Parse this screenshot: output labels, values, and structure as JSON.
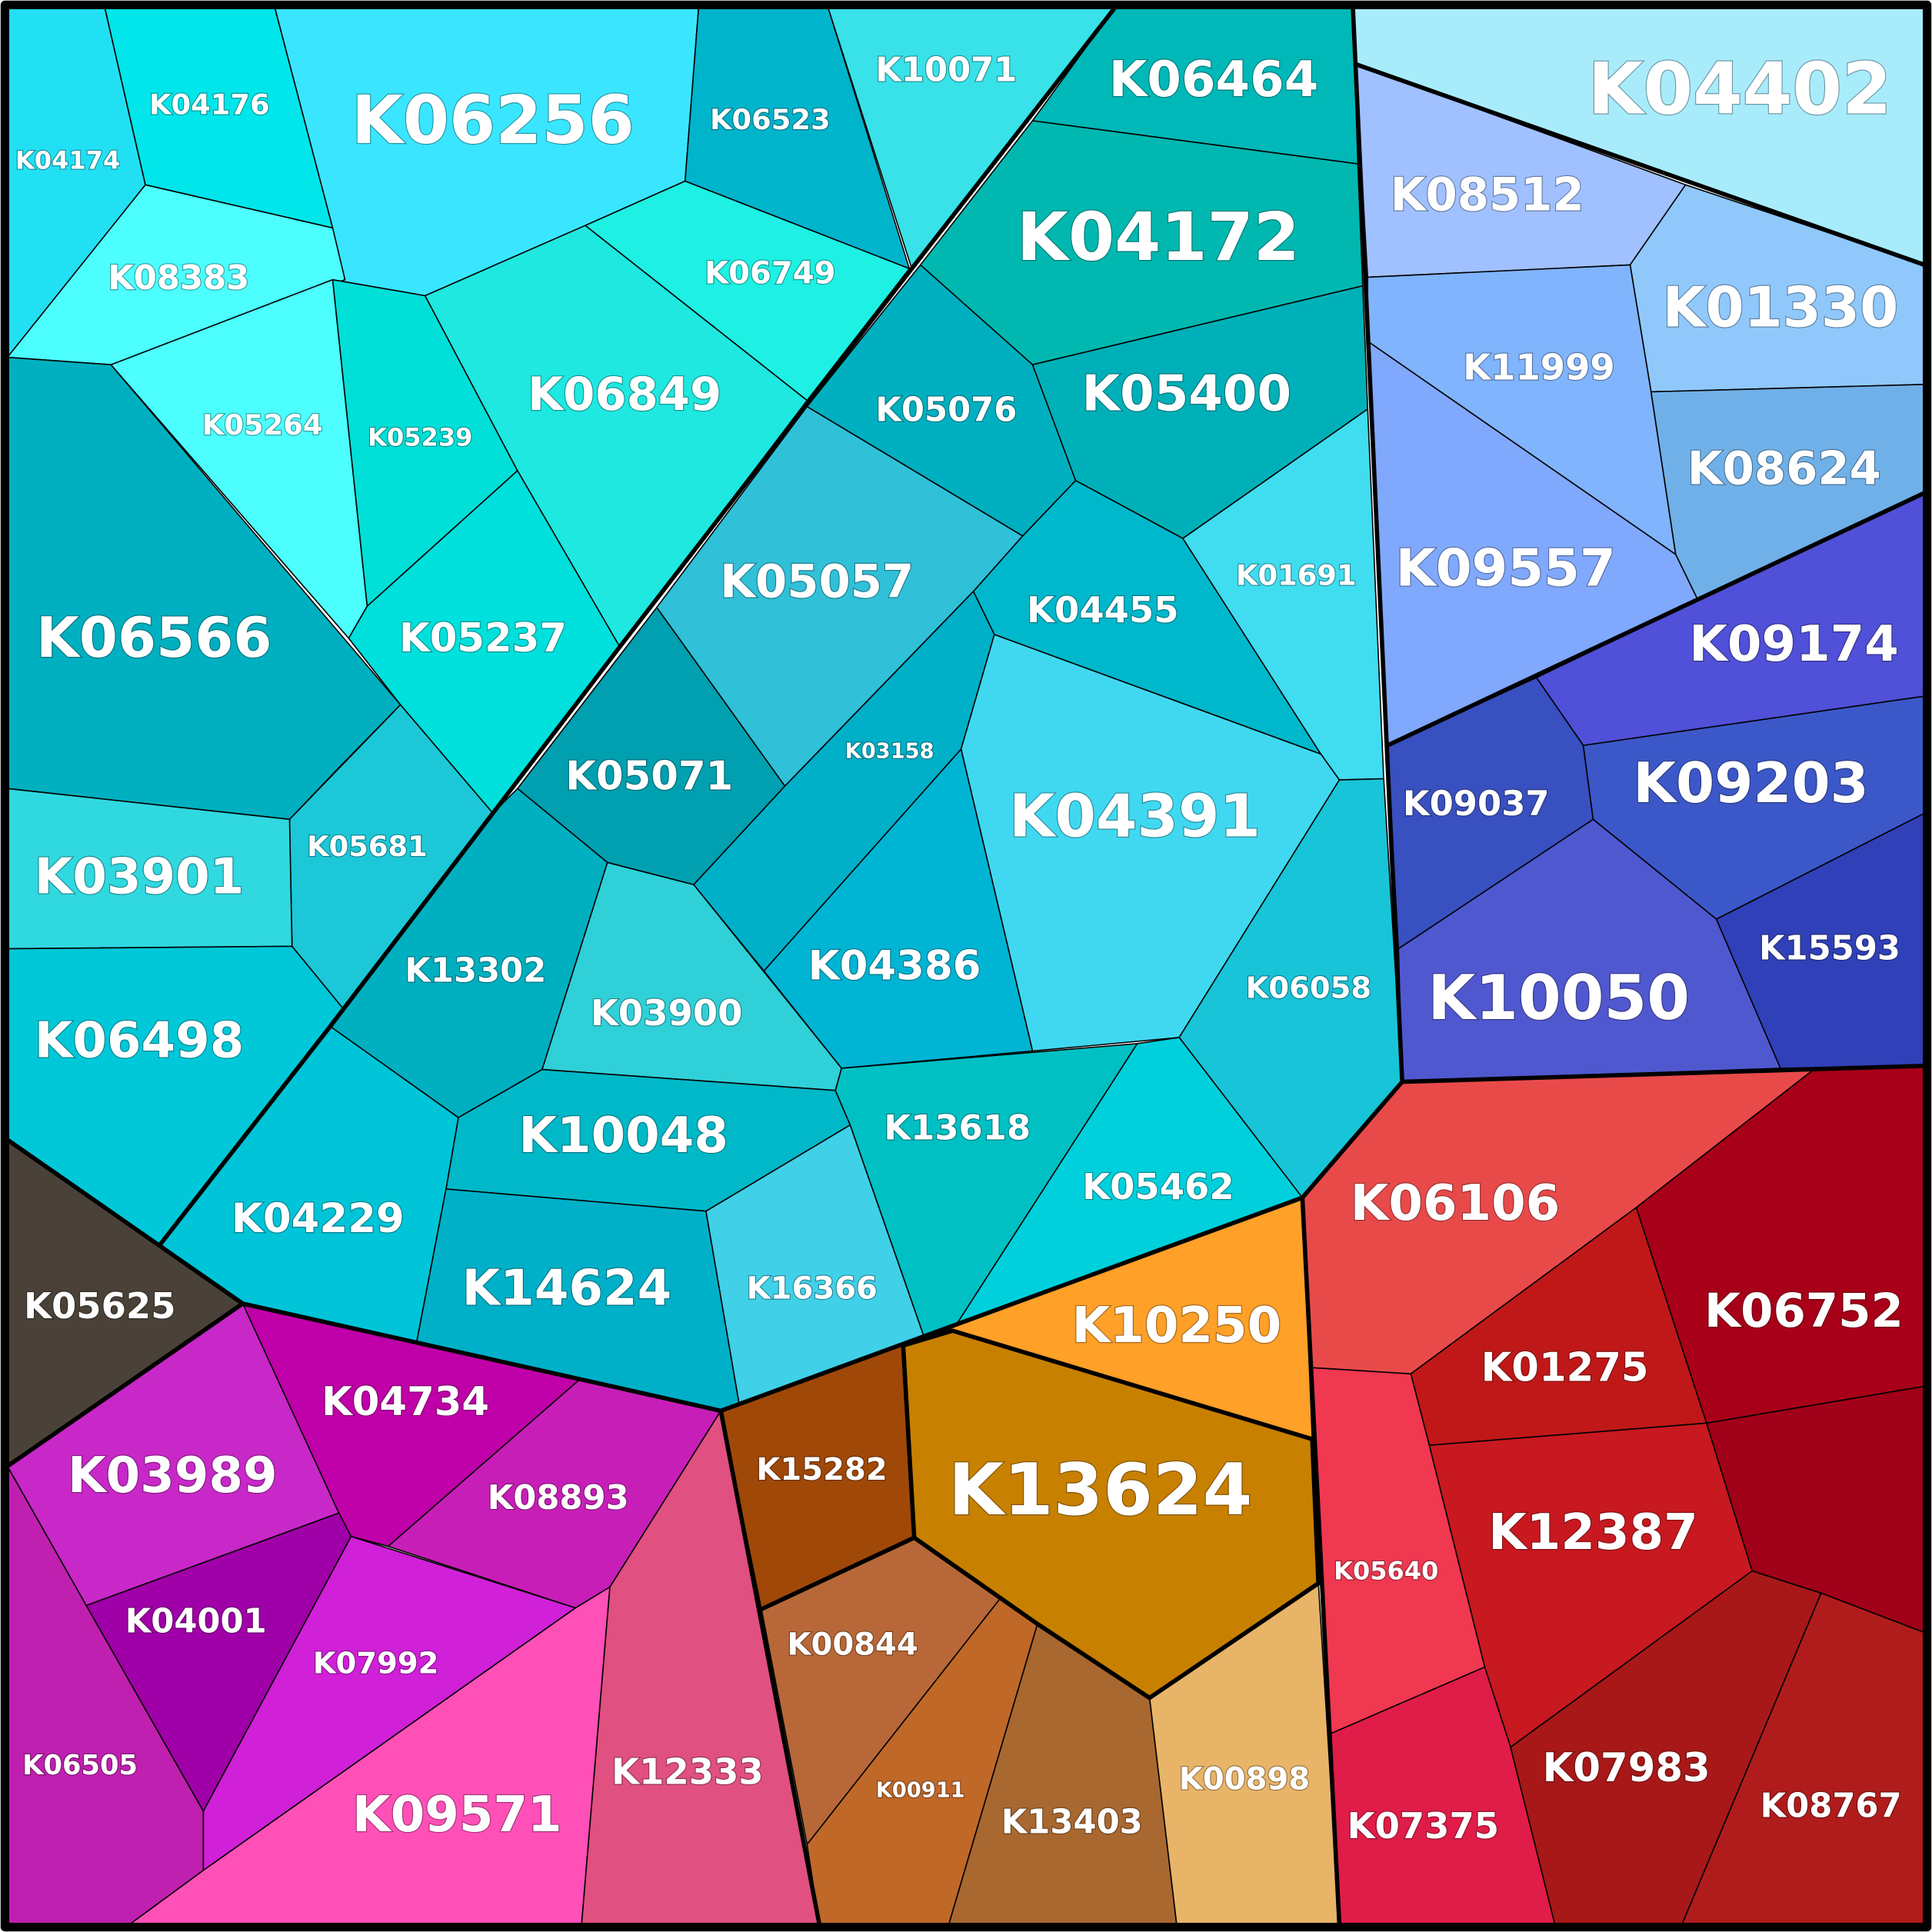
{
  "cells": [
    "K04174",
    "K04176",
    "K06256",
    "K06523",
    "K10071",
    "K08383",
    "K06749",
    "K05264",
    "K05239",
    "K06849",
    "K05237",
    "K06566",
    "K05681",
    "K03901",
    "K06498",
    "K06464",
    "K04172",
    "K05076",
    "K05400",
    "K05057",
    "K04455",
    "K01691",
    "K05071",
    "K03158",
    "K04391",
    "K04386",
    "K13302",
    "K03900",
    "K06058",
    "K10048",
    "K04229",
    "K14624",
    "K16366",
    "K13618",
    "K05462",
    "K05625",
    "K04734",
    "K08893",
    "K03989",
    "K04001",
    "K07992",
    "K06505",
    "K09571",
    "K12333",
    "K10250",
    "K13624",
    "K15282",
    "K00844",
    "K00911",
    "K13403",
    "K00898",
    "K06106",
    "K01275",
    "K06752",
    "K12387",
    "K05640",
    "K07375",
    "K07983",
    "K08767",
    "K04402",
    "K08512",
    "K01330",
    "K11999",
    "K08624",
    "K09557",
    "K09174",
    "K09037",
    "K09203",
    "K10050",
    "K15593"
  ]
}
